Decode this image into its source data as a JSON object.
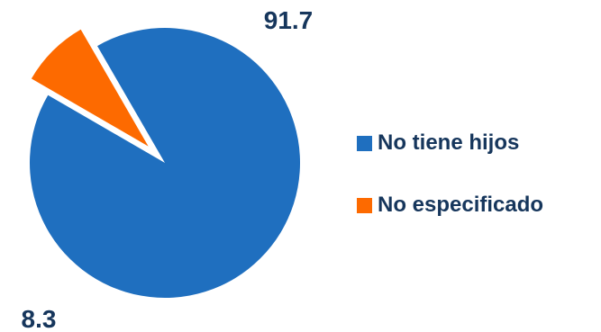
{
  "chart_data": {
    "type": "pie",
    "categories": [
      "No tiene hijos",
      "No especificado"
    ],
    "values": [
      91.7,
      8.3
    ],
    "value_labels": [
      "91.7",
      "8.3"
    ],
    "colors": [
      "#1f6fbf",
      "#fd6a00"
    ],
    "exploded": [
      false,
      true
    ],
    "legend_position": "right",
    "title": ""
  }
}
